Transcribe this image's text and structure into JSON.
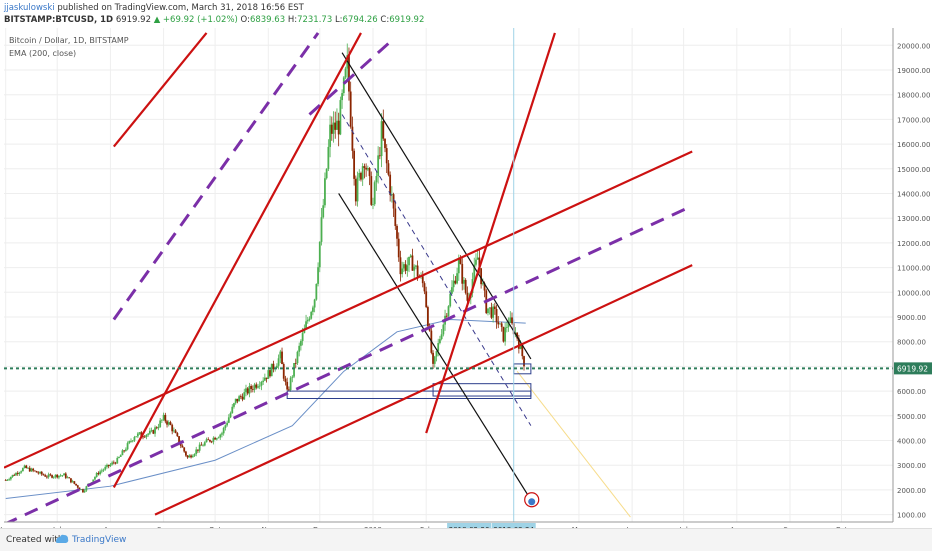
{
  "header": {
    "author": "jjaskulowski",
    "published_text": " published on TradingView.com, March 31, 2018 16:56 EST",
    "symbol": "BITSTAMP:BTCUSD, 1D",
    "price": "6919.92",
    "change": "▲ +69.92 (+1.02%)",
    "o_label": "O:",
    "o_value": "6839.63",
    "h_label": "H:",
    "h_value": "7231.73",
    "l_label": "L:",
    "l_value": "6794.26",
    "c_label": "C:",
    "c_value": "6919.92"
  },
  "legend": {
    "title": "Bitcoin / Dollar, 1D, BITSTAMP",
    "indicator": "EMA (200, close)"
  },
  "footer": {
    "created_with": "Created with",
    "brand": "TradingView"
  },
  "colors": {
    "bull": "#4caf50",
    "bear": "#8b2500",
    "ema": "#6a8fc7",
    "red_line": "#cc1111",
    "purple_dash": "#7b2fa8",
    "price_dotted": "#2e7d5b",
    "price_label_bg": "#2e7d5b",
    "highlight_label_bg": "#9fd3e6"
  },
  "chart_data": {
    "type": "candlestick",
    "y_axis": {
      "ticks": [
        1000,
        2000,
        3000,
        4000,
        5000,
        6000,
        7000,
        8000,
        9000,
        10000,
        11000,
        12000,
        13000,
        14000,
        15000,
        16000,
        17000,
        18000,
        19000,
        20000
      ],
      "tick_labels": [
        "1000.00",
        "2000.00",
        "3000.00",
        "4000.00",
        "5000.00",
        "6000.00",
        "7000.00",
        "8000.00",
        "9000.00",
        "10000.00",
        "11000.00",
        "12000.00",
        "13000.00",
        "14000.00",
        "15000.00",
        "16000.00",
        "17000.00",
        "18000.00",
        "19000.00",
        "20000.00"
      ],
      "ylim": [
        700,
        20700
      ],
      "position": "right"
    },
    "x_axis": {
      "start_date": "2017-05-31",
      "end_date": "2018-10-31",
      "labels": [
        {
          "date": "2017-06-01",
          "text": "Jun"
        },
        {
          "date": "2017-07-01",
          "text": "Jul"
        },
        {
          "date": "2017-08-01",
          "text": "Aug"
        },
        {
          "date": "2017-09-01",
          "text": "Sep"
        },
        {
          "date": "2017-10-01",
          "text": "Oct"
        },
        {
          "date": "2017-11-01",
          "text": "Nov"
        },
        {
          "date": "2017-12-01",
          "text": "Dec"
        },
        {
          "date": "2018-01-01",
          "text": "2018"
        },
        {
          "date": "2018-02-01",
          "text": "Feb"
        },
        {
          "date": "2018-05-01",
          "text": "May"
        },
        {
          "date": "2018-06-01",
          "text": "Jun"
        },
        {
          "date": "2018-07-01",
          "text": "Jul"
        },
        {
          "date": "2018-08-01",
          "text": "Aug"
        },
        {
          "date": "2018-09-01",
          "text": "Sep"
        },
        {
          "date": "2018-10-01",
          "text": "Oct"
        }
      ],
      "highlight_labels": [
        {
          "date": "2018-02-26",
          "text": "2018-02-26"
        },
        {
          "date": "2018-03-24",
          "text": "2018-03-24"
        }
      ]
    },
    "last_price": {
      "value": 6919.92,
      "label": "6919.92"
    },
    "price_path": [
      {
        "date": "2017-06-01",
        "value": 2400
      },
      {
        "date": "2017-06-12",
        "value": 2900
      },
      {
        "date": "2017-06-25",
        "value": 2550
      },
      {
        "date": "2017-07-05",
        "value": 2600
      },
      {
        "date": "2017-07-16",
        "value": 1950
      },
      {
        "date": "2017-07-25",
        "value": 2700
      },
      {
        "date": "2017-08-05",
        "value": 3200
      },
      {
        "date": "2017-08-15",
        "value": 4200
      },
      {
        "date": "2017-08-25",
        "value": 4300
      },
      {
        "date": "2017-09-01",
        "value": 4900
      },
      {
        "date": "2017-09-05",
        "value": 4600
      },
      {
        "date": "2017-09-15",
        "value": 3300
      },
      {
        "date": "2017-09-25",
        "value": 3900
      },
      {
        "date": "2017-10-05",
        "value": 4300
      },
      {
        "date": "2017-10-13",
        "value": 5600
      },
      {
        "date": "2017-10-20",
        "value": 6000
      },
      {
        "date": "2017-11-01",
        "value": 6700
      },
      {
        "date": "2017-11-08",
        "value": 7400
      },
      {
        "date": "2017-11-12",
        "value": 5900
      },
      {
        "date": "2017-11-20",
        "value": 8000
      },
      {
        "date": "2017-11-28",
        "value": 9800
      },
      {
        "date": "2017-12-07",
        "value": 16500
      },
      {
        "date": "2017-12-12",
        "value": 16800
      },
      {
        "date": "2017-12-17",
        "value": 19200
      },
      {
        "date": "2017-12-22",
        "value": 14000
      },
      {
        "date": "2017-12-27",
        "value": 15500
      },
      {
        "date": "2018-01-01",
        "value": 13500
      },
      {
        "date": "2018-01-06",
        "value": 16500
      },
      {
        "date": "2018-01-12",
        "value": 13800
      },
      {
        "date": "2018-01-17",
        "value": 11000
      },
      {
        "date": "2018-01-24",
        "value": 11200
      },
      {
        "date": "2018-01-31",
        "value": 10200
      },
      {
        "date": "2018-02-05",
        "value": 6900
      },
      {
        "date": "2018-02-10",
        "value": 8500
      },
      {
        "date": "2018-02-20",
        "value": 11200
      },
      {
        "date": "2018-02-25",
        "value": 9700
      },
      {
        "date": "2018-03-03",
        "value": 11400
      },
      {
        "date": "2018-03-08",
        "value": 9400
      },
      {
        "date": "2018-03-13",
        "value": 9100
      },
      {
        "date": "2018-03-18",
        "value": 8200
      },
      {
        "date": "2018-03-21",
        "value": 8900
      },
      {
        "date": "2018-03-26",
        "value": 8200
      },
      {
        "date": "2018-03-31",
        "value": 6920
      }
    ],
    "ema_200": [
      {
        "date": "2017-06-01",
        "value": 1650
      },
      {
        "date": "2017-08-01",
        "value": 2150
      },
      {
        "date": "2017-10-01",
        "value": 3200
      },
      {
        "date": "2017-11-15",
        "value": 4600
      },
      {
        "date": "2017-12-15",
        "value": 6800
      },
      {
        "date": "2018-01-15",
        "value": 8400
      },
      {
        "date": "2018-02-15",
        "value": 8900
      },
      {
        "date": "2018-03-31",
        "value": 8750
      }
    ],
    "drawings": {
      "red_lines": [
        {
          "from": {
            "date": "2017-05-31",
            "value": 2900
          },
          "to": {
            "date": "2018-07-06",
            "value": 15700
          }
        },
        {
          "from": {
            "date": "2017-08-27",
            "value": 1000
          },
          "to": {
            "date": "2018-07-06",
            "value": 11100
          }
        },
        {
          "from": {
            "date": "2017-08-03",
            "value": 2100
          },
          "to": {
            "date": "2017-12-25",
            "value": 20500
          }
        },
        {
          "from": {
            "date": "2018-02-01",
            "value": 4300
          },
          "to": {
            "date": "2018-04-17",
            "value": 20500
          }
        },
        {
          "from": {
            "date": "2017-08-03",
            "value": 15900
          },
          "to": {
            "date": "2017-09-26",
            "value": 20500
          }
        }
      ],
      "purple_dashed": [
        {
          "from": {
            "date": "2017-05-31",
            "value": 600
          },
          "to": {
            "date": "2018-07-06",
            "value": 13500
          }
        },
        {
          "from": {
            "date": "2017-08-03",
            "value": 8900
          },
          "to": {
            "date": "2017-11-30",
            "value": 20500
          }
        },
        {
          "from": {
            "date": "2017-11-25",
            "value": 17200
          },
          "to": {
            "date": "2018-01-12",
            "value": 20200
          }
        }
      ],
      "black_channel": [
        {
          "from": {
            "date": "2017-12-14",
            "value": 19700
          },
          "to": {
            "date": "2018-04-03",
            "value": 7300
          }
        },
        {
          "from": {
            "date": "2017-12-12",
            "value": 14000
          },
          "to": {
            "date": "2018-04-03",
            "value": 1600
          }
        }
      ],
      "black_dashed": {
        "from": {
          "date": "2017-12-14",
          "value": 17200
        },
        "to": {
          "date": "2018-04-03",
          "value": 4600
        }
      },
      "yellow_projection": {
        "from": {
          "date": "2018-03-26",
          "value": 6800
        },
        "to": {
          "date": "2018-05-31",
          "value": 900
        }
      },
      "blue_rectangles": [
        {
          "from": {
            "date": "2017-11-12",
            "value": 6000
          },
          "to": {
            "date": "2018-04-03",
            "value": 5700
          }
        },
        {
          "from": {
            "date": "2018-02-05",
            "value": 6300
          },
          "to": {
            "date": "2018-04-03",
            "value": 5800
          }
        },
        {
          "from": {
            "date": "2018-03-24",
            "value": 7100
          },
          "to": {
            "date": "2018-04-03",
            "value": 6700
          }
        }
      ],
      "vertical_line": {
        "date": "2018-03-24"
      }
    }
  }
}
